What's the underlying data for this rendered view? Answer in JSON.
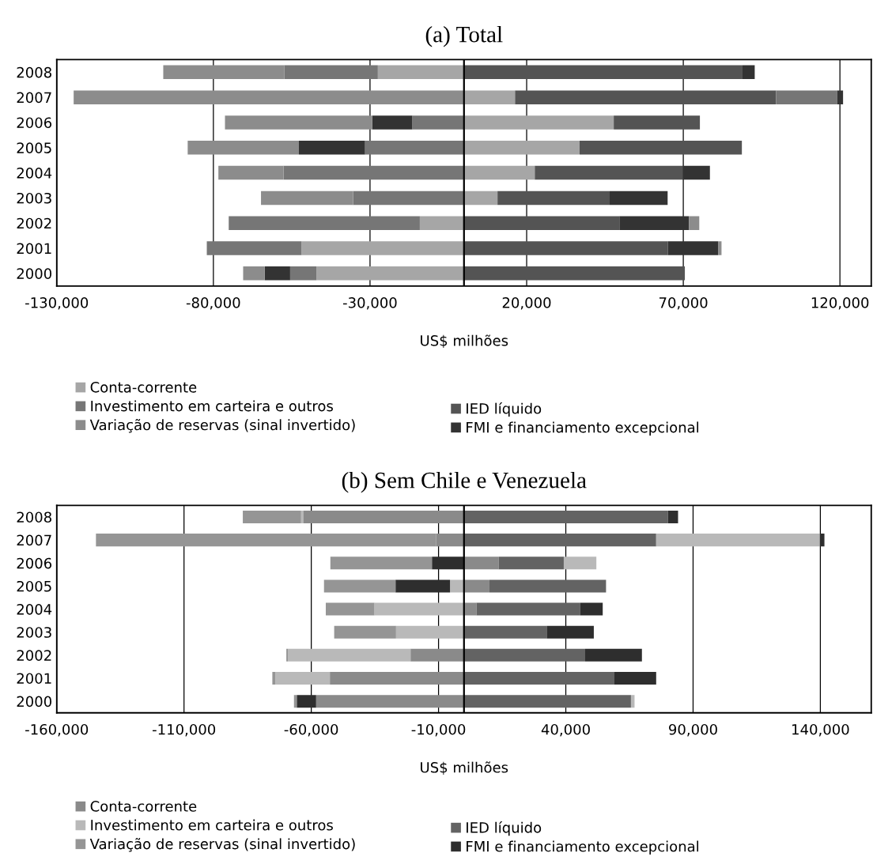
{
  "chart_data": [
    {
      "type": "bar",
      "orientation": "horizontal",
      "stacked": true,
      "title": "(a) Total",
      "xlabel": "US$ milhões",
      "categories": [
        "2008",
        "2007",
        "2006",
        "2005",
        "2004",
        "2003",
        "2002",
        "2001",
        "2000"
      ],
      "series": [
        {
          "name": "Conta-corrente",
          "color": "#a6a6a6",
          "values": [
            -27500,
            16300,
            47800,
            36900,
            22600,
            10700,
            -14100,
            -51900,
            -47100
          ]
        },
        {
          "name": "IED líquido",
          "color": "#545454",
          "values": [
            88900,
            83300,
            27500,
            51800,
            47200,
            35800,
            49600,
            65100,
            70500
          ]
        },
        {
          "name": "Investimento em carteira e outros",
          "color": "#767676",
          "values": [
            -29800,
            19500,
            -16500,
            -31600,
            -57600,
            -35400,
            -61000,
            -30200,
            -8400
          ]
        },
        {
          "name": "FMI e financiamento excepcional",
          "color": "#333333",
          "values": [
            3900,
            1900,
            -12800,
            -21100,
            8700,
            18500,
            22200,
            16000,
            -8100
          ]
        },
        {
          "name": "Variação de reservas (sinal invertido)",
          "color": "#8c8c8c",
          "values": [
            -38700,
            -124600,
            -47000,
            -35500,
            -20800,
            -29400,
            3300,
            1100,
            -6900
          ]
        }
      ],
      "xlim": [
        -130000,
        130000
      ],
      "xticks": [
        {
          "value": -130000,
          "label": "-130,000"
        },
        {
          "value": -80000,
          "label": "-80,000"
        },
        {
          "value": -30000,
          "label": "-30,000"
        },
        {
          "value": 20000,
          "label": "20,000"
        },
        {
          "value": 70000,
          "label": "70,000"
        },
        {
          "value": 120000,
          "label": "120,000"
        }
      ],
      "ref_lines": [
        {
          "axis": "x",
          "value": 0,
          "color": "#000000"
        }
      ],
      "grid": "x",
      "legend": "bottom"
    },
    {
      "type": "bar",
      "orientation": "horizontal",
      "stacked": true,
      "title": "(b) Sem Chile e Venezuela",
      "xlabel": "US$ milhões",
      "categories": [
        "2008",
        "2007",
        "2006",
        "2005",
        "2004",
        "2003",
        "2002",
        "2001",
        "2000"
      ],
      "series": [
        {
          "name": "Conta-corrente",
          "color": "#8a8a8a",
          "values": [
            -63200,
            -11000,
            13600,
            10000,
            4900,
            null,
            -21000,
            -52700,
            -58100
          ]
        },
        {
          "name": "IED líquido",
          "color": "#636363",
          "values": [
            80100,
            75500,
            25600,
            45800,
            40800,
            32500,
            47600,
            59100,
            65600
          ]
        },
        {
          "name": "Investimento em carteira e outros",
          "color": "#b9b9b9",
          "values": [
            -800,
            64300,
            12800,
            -5500,
            -35200,
            -26700,
            -48100,
            -21400,
            1400
          ]
        },
        {
          "name": "FMI e financiamento excepcional",
          "color": "#2e2e2e",
          "values": [
            4000,
            1800,
            -12600,
            -21400,
            8800,
            18500,
            22300,
            16400,
            -7600
          ]
        },
        {
          "name": "Variação de reservas (sinal invertido)",
          "color": "#959595",
          "values": [
            -22900,
            -133600,
            -39900,
            -28100,
            -19100,
            -24300,
            -700,
            -1200,
            -1100
          ]
        }
      ],
      "xlim": [
        -160000,
        160000
      ],
      "xticks": [
        {
          "value": -160000,
          "label": "-160,000"
        },
        {
          "value": -110000,
          "label": "-110,000"
        },
        {
          "value": -60000,
          "label": "-60,000"
        },
        {
          "value": -10000,
          "label": "-10,000"
        },
        {
          "value": 40000,
          "label": "40,000"
        },
        {
          "value": 90000,
          "label": "90,000"
        },
        {
          "value": 140000,
          "label": "140,000"
        }
      ],
      "ref_lines": [
        {
          "axis": "x",
          "value": 0,
          "color": "#000000"
        }
      ],
      "grid": "x",
      "legend": "bottom"
    }
  ]
}
